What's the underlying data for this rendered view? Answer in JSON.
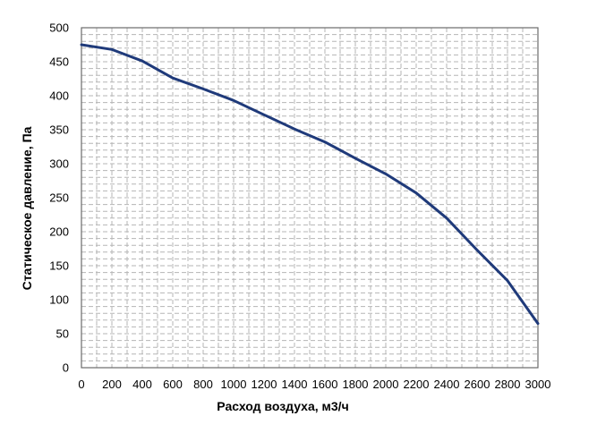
{
  "chart_data": {
    "type": "line",
    "title": "",
    "xlabel": "Расход воздуха, м3/ч",
    "ylabel": "Статическое давление, Па",
    "xlim": [
      0,
      3000
    ],
    "ylim": [
      0,
      500
    ],
    "x_ticks": [
      "0",
      "200",
      "400",
      "600",
      "800",
      "1000",
      "1200",
      "1400",
      "1600",
      "1800",
      "2000",
      "2200",
      "2400",
      "2600",
      "2800",
      "3000"
    ],
    "y_ticks": [
      "0",
      "50",
      "100",
      "150",
      "200",
      "250",
      "300",
      "350",
      "400",
      "450",
      "500"
    ],
    "grid": true,
    "grid_style": "dashed",
    "legend": "none",
    "series": [
      {
        "color": "#1f3a7a",
        "x": [
          0,
          200,
          400,
          600,
          800,
          1000,
          1200,
          1400,
          1600,
          1800,
          2000,
          2200,
          2400,
          2600,
          2800,
          3000
        ],
        "y": [
          475,
          468,
          451,
          426,
          410,
          393,
          372,
          351,
          332,
          308,
          285,
          257,
          220,
          173,
          128,
          65
        ]
      }
    ]
  }
}
